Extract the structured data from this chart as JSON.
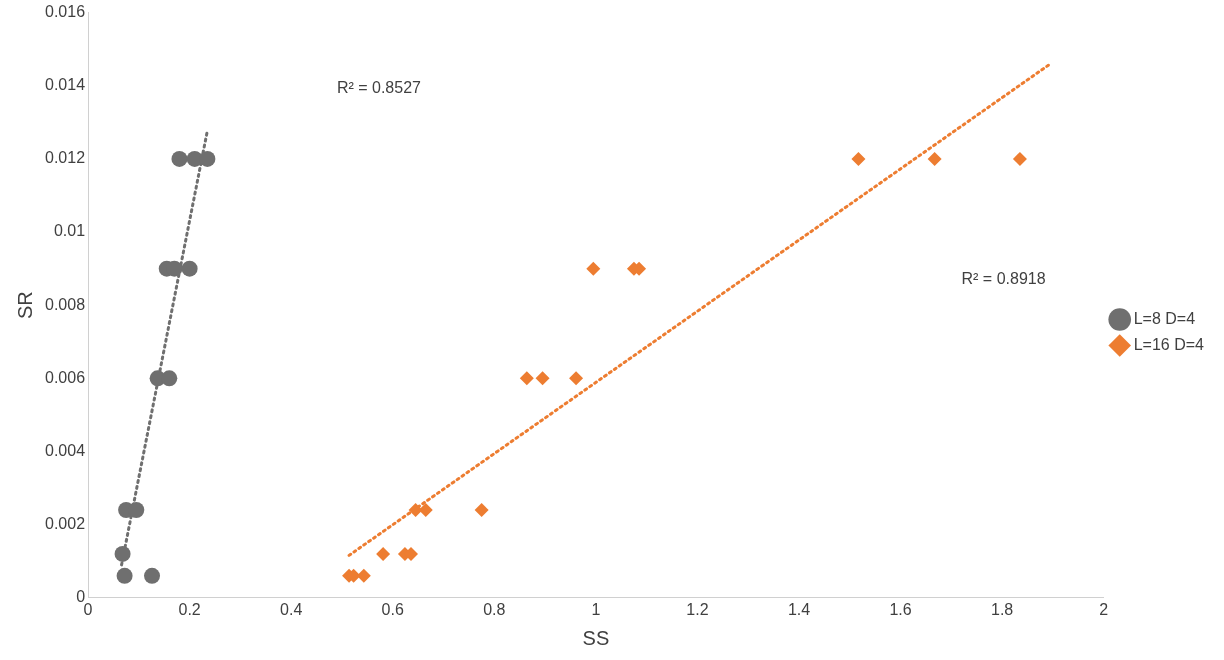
{
  "chart_data": {
    "type": "scatter",
    "xlabel": "SS",
    "ylabel": "SR",
    "xlim": [
      0,
      2
    ],
    "xticks": [
      0,
      0.2,
      0.4,
      0.6,
      0.8,
      1,
      1.2,
      1.4,
      1.6,
      1.8,
      2
    ],
    "ylim": [
      0,
      0.016
    ],
    "yticks": [
      0,
      0.002,
      0.004,
      0.006,
      0.008,
      0.01,
      0.012,
      0.014,
      0.016
    ],
    "grid": false,
    "legend": "right",
    "series": [
      {
        "name": "L=8 D=4",
        "color": "#6f6f6f",
        "marker": "circle",
        "x": [
          0.18,
          0.21,
          0.235,
          0.155,
          0.17,
          0.2,
          0.137,
          0.16,
          0.075,
          0.095,
          0.068,
          0.072,
          0.126
        ],
        "values": [
          0.012,
          0.012,
          0.012,
          0.009,
          0.009,
          0.009,
          0.006,
          0.006,
          0.0024,
          0.0024,
          0.0012,
          0.0006,
          0.0006
        ]
      },
      {
        "name": "L=16 D=4",
        "color": "#ed7d31",
        "marker": "diamond",
        "x": [
          1.517,
          1.667,
          1.835,
          0.995,
          1.075,
          1.085,
          0.864,
          0.895,
          0.961,
          0.645,
          0.665,
          0.775,
          0.581,
          0.624,
          0.636,
          0.514,
          0.523,
          0.543
        ],
        "values": [
          0.012,
          0.012,
          0.012,
          0.009,
          0.009,
          0.009,
          0.006,
          0.006,
          0.006,
          0.0024,
          0.0024,
          0.0024,
          0.0012,
          0.0012,
          0.0012,
          0.0006,
          0.0006,
          0.0006
        ]
      },
      {
        "type": "line",
        "color": "#6f6f6f",
        "line_style": "dotted",
        "marker": "none",
        "x": [
          0.066,
          0.234
        ],
        "values": [
          0.0009,
          0.0127
        ]
      },
      {
        "type": "line",
        "color": "#ed7d31",
        "line_style": "dotted",
        "marker": "none",
        "x": [
          0.514,
          1.895
        ],
        "values": [
          0.00116,
          0.0146
        ]
      }
    ],
    "annotations": [
      "R² = 0.8527",
      "R² = 0.8918"
    ]
  }
}
